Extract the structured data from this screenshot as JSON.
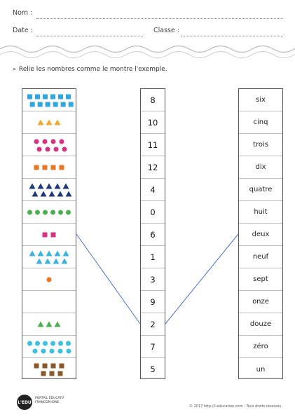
{
  "header": {
    "name_label": "Nom :",
    "date_label": "Date :",
    "class_label": "Classe :"
  },
  "instruction": {
    "arrow": "»",
    "text": "Relie les nombres comme le montre l'exemple."
  },
  "numbers": [
    "8",
    "10",
    "11",
    "12",
    "4",
    "0",
    "6",
    "1",
    "3",
    "9",
    "2",
    "7",
    "5"
  ],
  "words": [
    "six",
    "cinq",
    "trois",
    "dix",
    "quatre",
    "huit",
    "deux",
    "neuf",
    "sept",
    "onze",
    "douze",
    "zéro",
    "un"
  ],
  "shapes_rows": [
    {
      "shape": "square",
      "color": "#2fa7e0",
      "count": 12
    },
    {
      "shape": "triangle",
      "color": "#f0a830",
      "count": 3
    },
    {
      "shape": "circle",
      "color": "#d63384",
      "count": 8
    },
    {
      "shape": "square",
      "color": "#e87722",
      "count": 4
    },
    {
      "shape": "triangle",
      "color": "#1f3a7a",
      "count": 10
    },
    {
      "shape": "circle",
      "color": "#4caf50",
      "count": 6
    },
    {
      "shape": "square",
      "color": "#d63384",
      "count": 2
    },
    {
      "shape": "triangle",
      "color": "#3cb4e0",
      "count": 9
    },
    {
      "shape": "circle",
      "color": "#e87722",
      "count": 1
    },
    {
      "shape": "none",
      "color": "#ffffff",
      "count": 0
    },
    {
      "shape": "triangle",
      "color": "#4caf50",
      "count": 3
    },
    {
      "shape": "circle",
      "color": "#3cc0e0",
      "count": 11
    },
    {
      "shape": "square",
      "color": "#8b5a2b",
      "count": 7
    }
  ],
  "example_links": [
    {
      "from_row": 6,
      "to_row": 10
    },
    {
      "from_row": 10,
      "to_row": 6
    }
  ],
  "footer": {
    "logo": "L'EDU",
    "logo_line1": "PORTAIL ÉDUCATIF",
    "logo_line2": "FRANCOPHONE",
    "copyright": "© 2017 http://l-education.com - Tous droits réservés"
  }
}
